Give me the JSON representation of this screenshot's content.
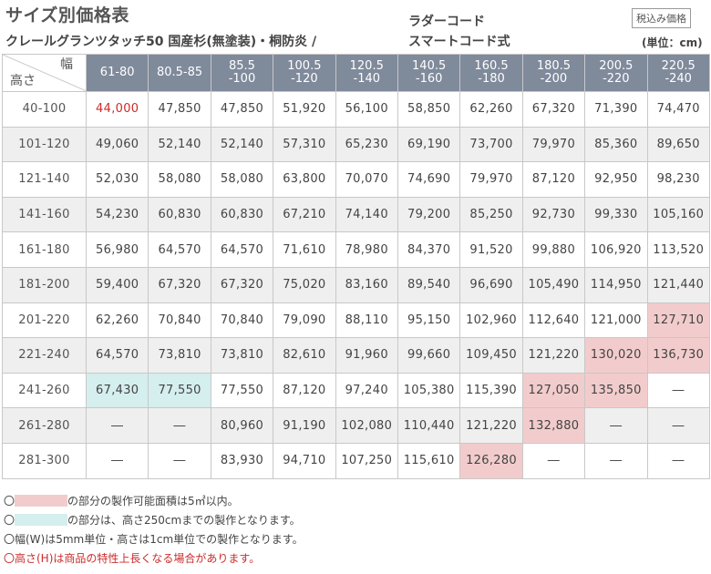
{
  "header": {
    "title": "サイズ別価格表",
    "subtitle": "クレールグランツタッチ50 国産杉(無塗装)・桐防炎 /",
    "subtitle2": "スマートコード式",
    "ladder": "ラダーコード",
    "tax_badge": "税込み価格",
    "unit": "(単位：cm)"
  },
  "table": {
    "corner_width": "幅",
    "corner_height": "高さ",
    "columns": [
      {
        "l1": "61-80",
        "l2": ""
      },
      {
        "l1": "80.5-85",
        "l2": ""
      },
      {
        "l1": "85.5",
        "l2": "-100"
      },
      {
        "l1": "100.5",
        "l2": "-120"
      },
      {
        "l1": "120.5",
        "l2": "-140"
      },
      {
        "l1": "140.5",
        "l2": "-160"
      },
      {
        "l1": "160.5",
        "l2": "-180"
      },
      {
        "l1": "180.5",
        "l2": "-200"
      },
      {
        "l1": "200.5",
        "l2": "-220"
      },
      {
        "l1": "220.5",
        "l2": "-240"
      }
    ],
    "rows": [
      {
        "height": "40-100",
        "cells": [
          "44,000",
          "47,850",
          "47,850",
          "51,920",
          "56,100",
          "58,850",
          "62,260",
          "67,320",
          "71,390",
          "74,470"
        ]
      },
      {
        "height": "101-120",
        "cells": [
          "49,060",
          "52,140",
          "52,140",
          "57,310",
          "65,230",
          "69,190",
          "73,700",
          "79,970",
          "85,360",
          "89,650"
        ]
      },
      {
        "height": "121-140",
        "cells": [
          "52,030",
          "58,080",
          "58,080",
          "63,800",
          "70,070",
          "74,690",
          "79,970",
          "87,120",
          "92,950",
          "98,230"
        ]
      },
      {
        "height": "141-160",
        "cells": [
          "54,230",
          "60,830",
          "60,830",
          "67,210",
          "74,140",
          "79,200",
          "85,250",
          "92,730",
          "99,330",
          "105,160"
        ]
      },
      {
        "height": "161-180",
        "cells": [
          "56,980",
          "64,570",
          "64,570",
          "71,610",
          "78,980",
          "84,370",
          "91,520",
          "99,880",
          "106,920",
          "113,520"
        ]
      },
      {
        "height": "181-200",
        "cells": [
          "59,400",
          "67,320",
          "67,320",
          "75,020",
          "83,160",
          "89,540",
          "96,690",
          "105,490",
          "114,950",
          "121,440"
        ]
      },
      {
        "height": "201-220",
        "cells": [
          "62,260",
          "70,840",
          "70,840",
          "79,090",
          "88,110",
          "95,150",
          "102,960",
          "112,640",
          "121,000",
          "127,710"
        ]
      },
      {
        "height": "221-240",
        "cells": [
          "64,570",
          "73,810",
          "73,810",
          "82,610",
          "91,960",
          "99,660",
          "109,450",
          "121,220",
          "130,020",
          "136,730"
        ]
      },
      {
        "height": "241-260",
        "cells": [
          "67,430",
          "77,550",
          "77,550",
          "87,120",
          "97,240",
          "105,380",
          "115,390",
          "127,050",
          "135,850",
          "―"
        ]
      },
      {
        "height": "261-280",
        "cells": [
          "―",
          "―",
          "80,960",
          "91,190",
          "102,080",
          "110,440",
          "121,220",
          "132,880",
          "―",
          "―"
        ]
      },
      {
        "height": "281-300",
        "cells": [
          "―",
          "―",
          "83,930",
          "94,710",
          "107,250",
          "115,610",
          "126,280",
          "―",
          "―",
          "―"
        ]
      }
    ]
  },
  "notes": {
    "n1": "の部分の製作可能面積は5㎡以内。",
    "n2": "の部分は、高さ250cmまでの製作となります。",
    "n3": "〇幅(W)は5mm単位・高さは1cm単位での製作となります。",
    "n4": "〇高さ(H)は商品の特性上長くなる場合があります。",
    "circle": "〇"
  },
  "colors": {
    "header_bg": "#7f8a9b",
    "pink": "#f2cccc",
    "cyan": "#d5eeee",
    "red_text": "#cc2b2b"
  }
}
